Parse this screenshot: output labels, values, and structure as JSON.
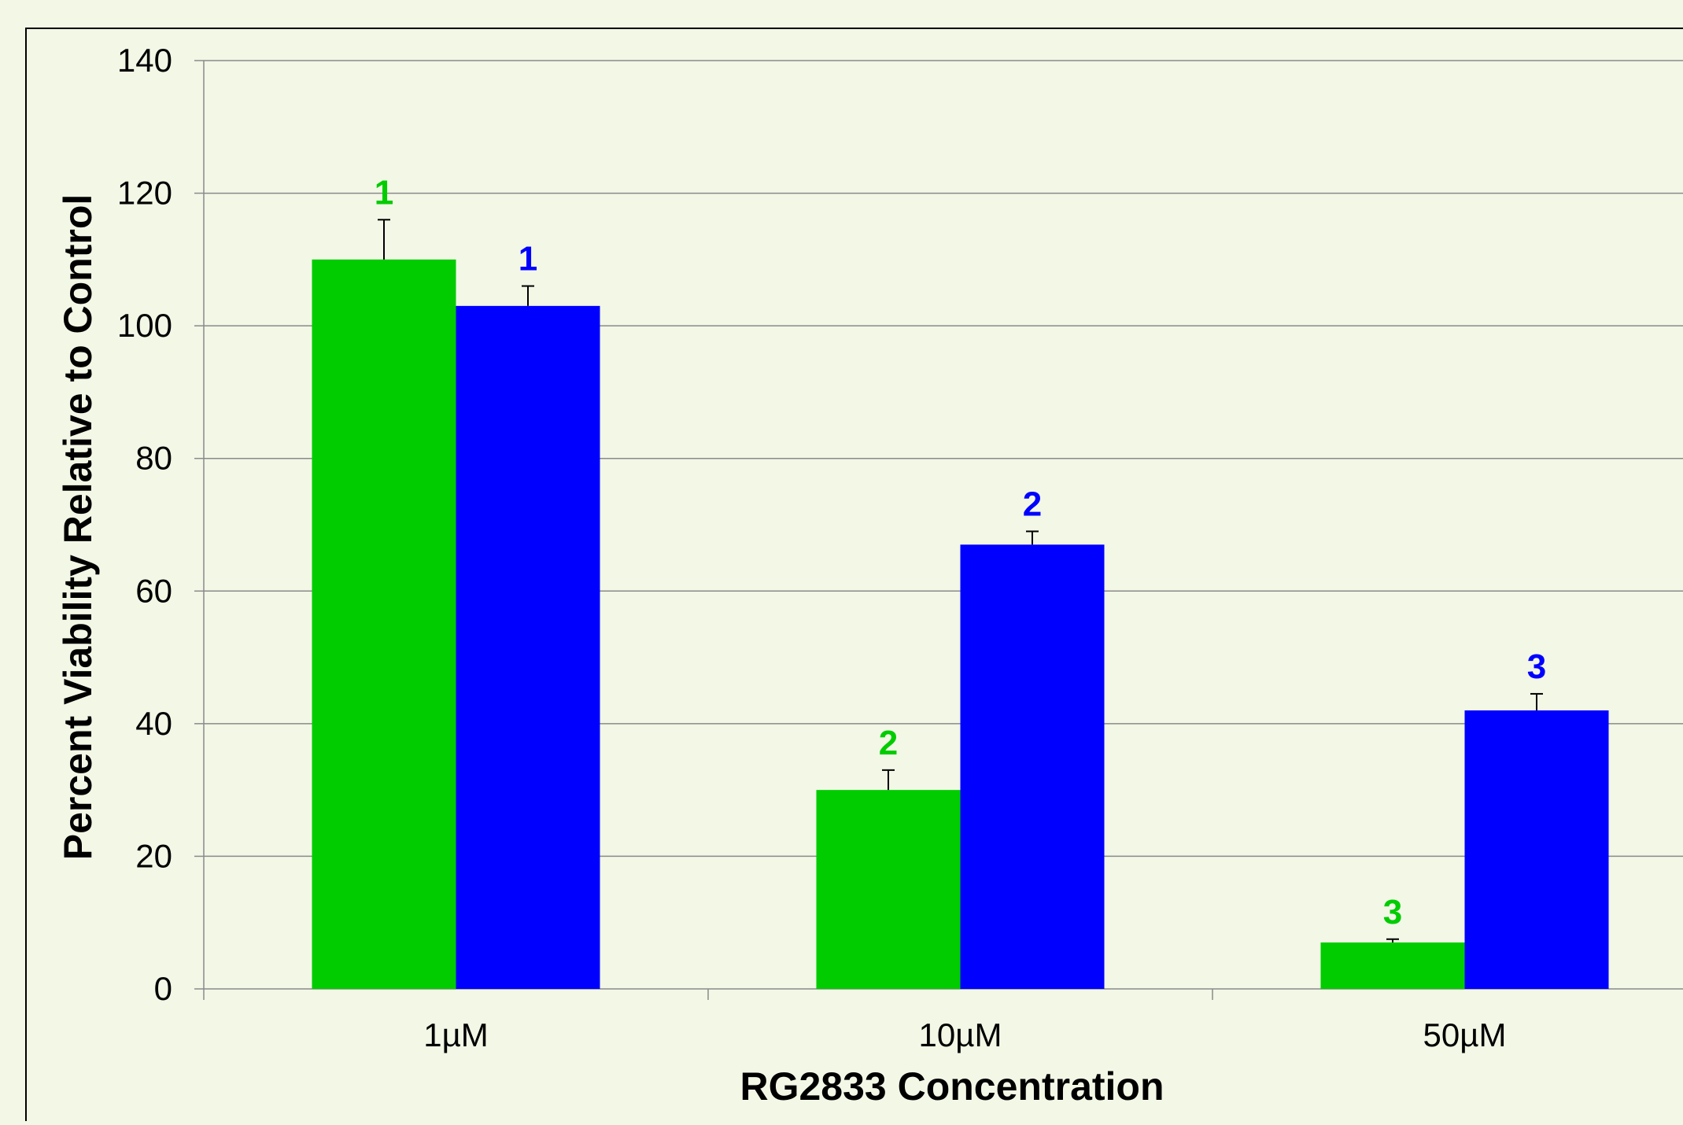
{
  "chart_data": {
    "type": "bar",
    "xlabel": "RG2833 Concentration",
    "ylabel": "Percent Viability Relative to Control",
    "categories": [
      "1µM",
      "10µM",
      "50µM"
    ],
    "ylim": [
      0,
      140
    ],
    "yticks": [
      0,
      20,
      40,
      60,
      80,
      100,
      120,
      140
    ],
    "grid": true,
    "series": [
      {
        "color": "#00cc00",
        "values": [
          110,
          30,
          7
        ],
        "error": [
          6,
          3,
          0.5
        ],
        "labels": [
          "1",
          "2",
          "3"
        ]
      },
      {
        "color": "#0000ff",
        "values": [
          103,
          67,
          42
        ],
        "error": [
          3,
          2,
          2.5
        ],
        "labels": [
          "1",
          "2",
          "3"
        ]
      }
    ]
  }
}
